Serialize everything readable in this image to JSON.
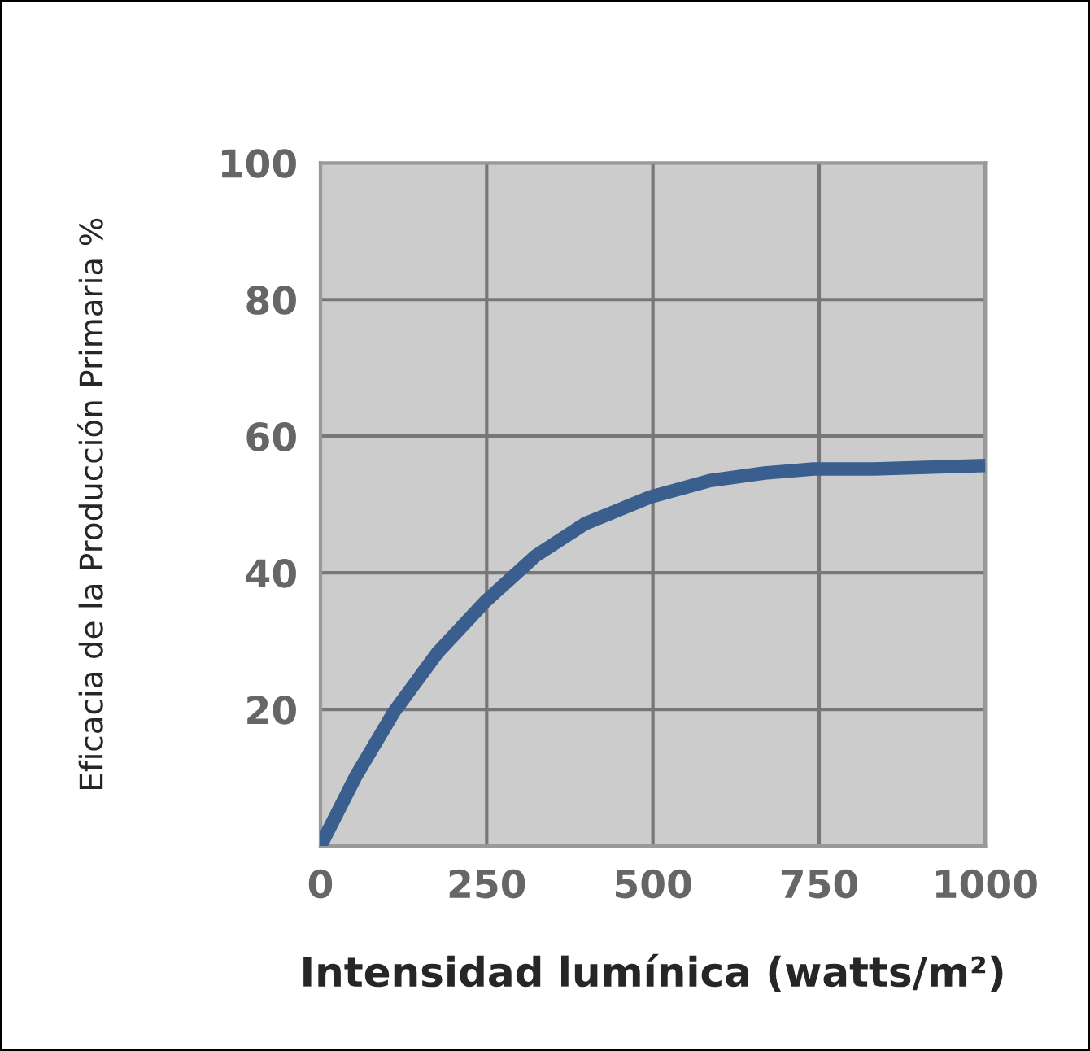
{
  "chart_data": {
    "type": "line",
    "xlabel": "Intensidad lumínica (watts/m²)",
    "ylabel": "Eficacia de la Producción Primaria %",
    "x": [
      0,
      53,
      111,
      176,
      248,
      324,
      398,
      496,
      586,
      668,
      742,
      832,
      1000
    ],
    "series": [
      {
        "color": "#3a5e8e",
        "values": [
          0,
          10.2,
          19.7,
          28.3,
          35.8,
          42.5,
          47.2,
          51.1,
          53.5,
          54.6,
          55.2,
          55.2,
          55.7
        ]
      }
    ],
    "xlim": [
      0,
      1000
    ],
    "ylim": [
      0,
      100
    ],
    "xticks": [
      0,
      250,
      500,
      750,
      1000
    ],
    "yticks": [
      20,
      40,
      60,
      80,
      100
    ],
    "grid": true,
    "marker": "none",
    "line_style": "solid"
  }
}
